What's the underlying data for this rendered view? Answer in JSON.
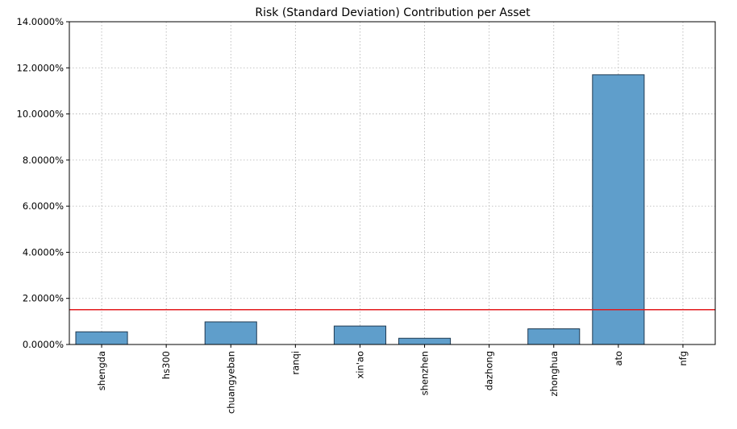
{
  "chart_data": {
    "type": "bar",
    "title": "Risk (Standard Deviation) Contribution per Asset",
    "xlabel": "",
    "ylabel": "",
    "categories": [
      "shengda",
      "hs300",
      "chuangyeban",
      "ranqi",
      "xin'ao",
      "shenzhen",
      "dazhong",
      "zhonghua",
      "ato",
      "nfg"
    ],
    "values": [
      0.0055,
      0.0,
      0.0098,
      0.0,
      0.008,
      0.0027,
      0.0,
      0.0068,
      0.117,
      0.0
    ],
    "ylim": [
      0,
      0.14
    ],
    "yticks": [
      0,
      0.02,
      0.04,
      0.06,
      0.08,
      0.1,
      0.12,
      0.14
    ],
    "ytick_labels": [
      "0.0000%",
      "2.0000%",
      "4.0000%",
      "6.0000%",
      "8.0000%",
      "10.0000%",
      "12.0000%",
      "14.0000%"
    ],
    "reference_line": {
      "value": 0.0151,
      "color": "#e31a1c"
    },
    "bar_color": "#5f9ecb",
    "grid": true
  }
}
